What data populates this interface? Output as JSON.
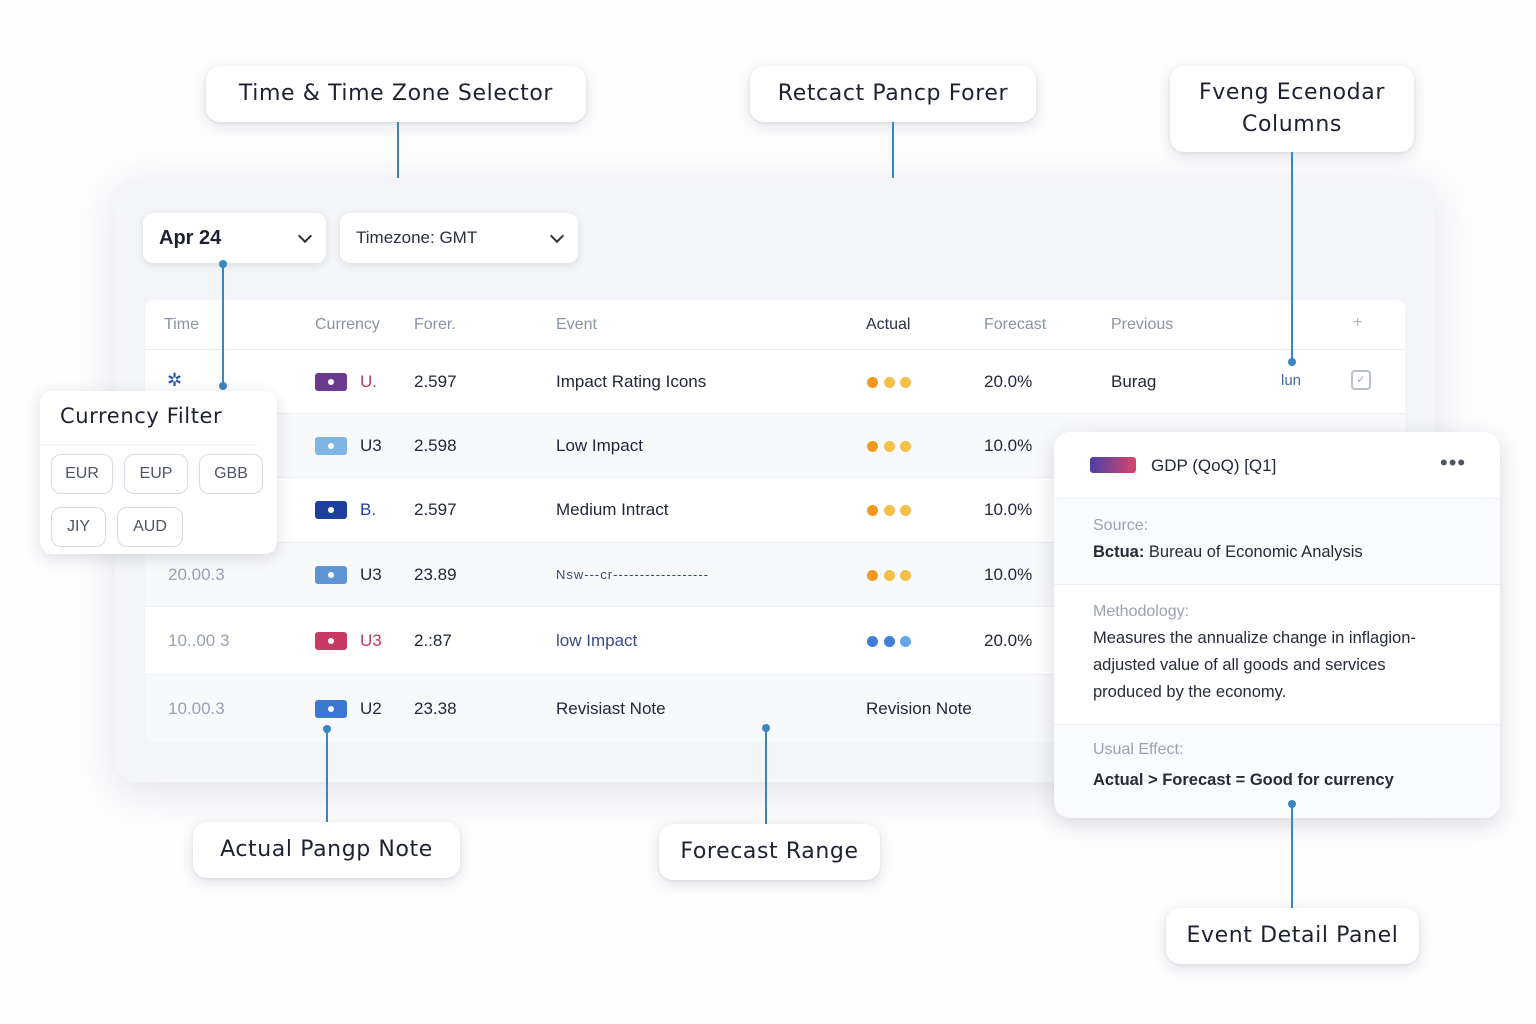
{
  "callouts": {
    "time_zone_selector": "Time & Time Zone Selector",
    "retcact_pancp_forer": "Retcact Pancp Forer",
    "fveng_econodar_columns_line1": "Fveng Ecenodar",
    "fveng_econodar_columns_line2": "Columns",
    "actual_pangp_note": "Actual Pangp Note",
    "forecast_range": "Forecast Range",
    "event_detail_panel": "Event Detail Panel"
  },
  "controls": {
    "date_value": "Apr 24",
    "timezone_value": "Timezone: GMT"
  },
  "table": {
    "headers": {
      "time": "Time",
      "currency": "Currency",
      "forer": "Forer.",
      "event": "Event",
      "actual": "Actual",
      "forecast": "Forecast",
      "previous": "Previous"
    },
    "rows": [
      {
        "time": "",
        "currency": "U.",
        "value": "2.597",
        "event": "Impact Rating Icons",
        "impact": [
          "#f39a1e",
          "#f5c04a",
          "#f5c04a"
        ],
        "forecast": "20.0%",
        "previous": "Burag",
        "extra": "lun",
        "flag_color": "#6b3a8e"
      },
      {
        "time": "",
        "currency": "U3",
        "value": "2.598",
        "event": "Low Impact",
        "impact": [
          "#f39a1e",
          "#f5c04a",
          "#f5c04a"
        ],
        "forecast": "10.0%",
        "previous": "",
        "extra": "",
        "flag_color": "#7fb6e6"
      },
      {
        "time": "",
        "currency": "B.",
        "value": "2.597",
        "event": "Medium Intract",
        "impact": [
          "#f39a1e",
          "#f5c04a",
          "#f5c04a"
        ],
        "forecast": "10.0%",
        "previous": "",
        "extra": "",
        "flag_color": "#1f3f9e"
      },
      {
        "time": "20.00.3",
        "currency": "U3",
        "value": "23.89",
        "event": "Nsw---cr------------------",
        "impact": [
          "#f39a1e",
          "#f5c04a",
          "#f5c04a"
        ],
        "forecast": "10.0%",
        "previous": "",
        "extra": "",
        "flag_color": "#5e93d4"
      },
      {
        "time": "10..00 3",
        "currency": "U3",
        "value": "2.:87",
        "event": "low Impact",
        "impact": [
          "#3b7fd6",
          "#3b7fd6",
          "#60a8e8"
        ],
        "forecast": "20.0%",
        "previous": "",
        "extra": "",
        "flag_color": "#c93a63"
      },
      {
        "time": "10.00.3",
        "currency": "U2",
        "value": "23.38",
        "event": "Revisiast Note",
        "impact": [],
        "forecast": "Revision Note",
        "previous": "",
        "extra": "",
        "flag_color": "#3c78cf"
      }
    ]
  },
  "currency_filter": {
    "title": "Currency Filter",
    "chips": [
      "EUR",
      "EUP",
      "GBB",
      "JIY",
      "AUD"
    ]
  },
  "detail_panel": {
    "title": "GDP (QoQ) [Q1]",
    "source_label": "Source:",
    "source_prefix": "Bctua:",
    "source_value": " Bureau of Economic Analysis",
    "methodology_label": "Methodology:",
    "methodology_lines": [
      "Measures the annualize change in inflagion-",
      "adjusted value of all goods and services",
      "produced by the economy."
    ],
    "usual_effect_label": "Usual Effect:",
    "usual_effect_value": "Actual > Forecast = Good for currency"
  },
  "colors": {
    "accent": "#3a86c4",
    "impact_high": "#f39a1e",
    "impact_medium": "#f5c04a",
    "impact_low": "#3b7fd6"
  }
}
